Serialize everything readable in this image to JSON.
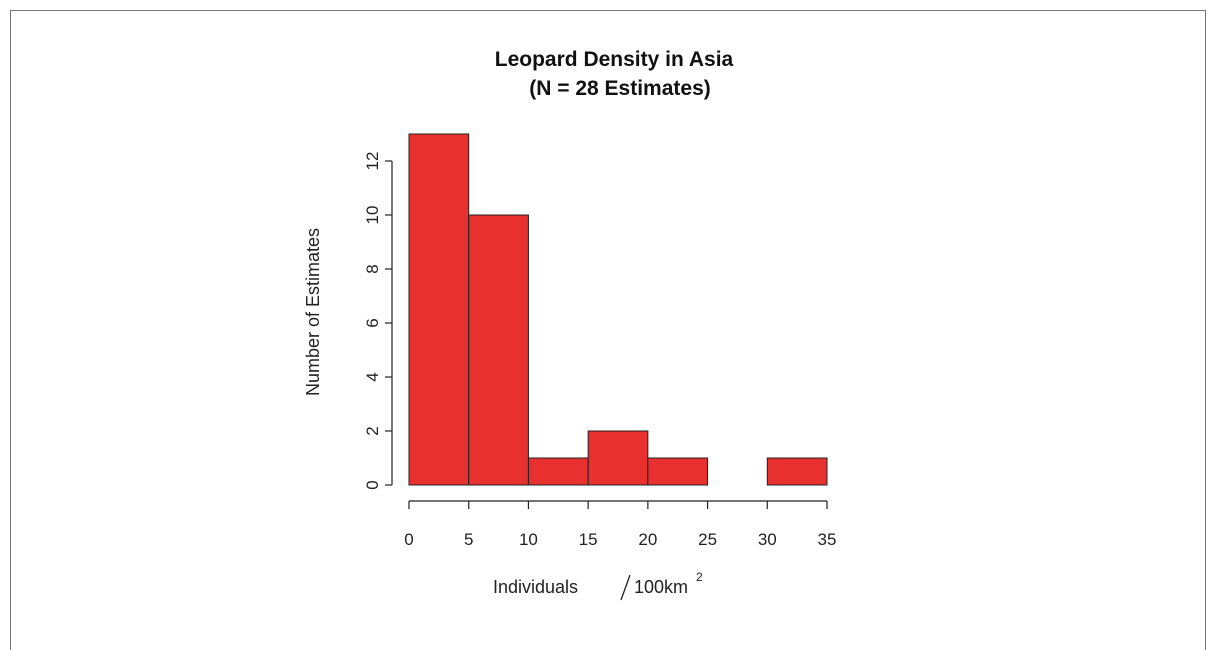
{
  "chart_data": {
    "type": "bar",
    "title_line1": "Leopard Density in Asia",
    "title_line2": "(N = 28 Estimates)",
    "xlabel_main": "Individuals",
    "xlabel_unit": "100km",
    "xlabel_unit_sup": "2",
    "ylabel": "Number of Estimates",
    "bins": [
      {
        "from": 0,
        "to": 5,
        "count": 13
      },
      {
        "from": 5,
        "to": 10,
        "count": 10
      },
      {
        "from": 10,
        "to": 15,
        "count": 1
      },
      {
        "from": 15,
        "to": 20,
        "count": 2
      },
      {
        "from": 20,
        "to": 25,
        "count": 1
      },
      {
        "from": 25,
        "to": 30,
        "count": 0
      },
      {
        "from": 30,
        "to": 35,
        "count": 1
      }
    ],
    "xlim": [
      0,
      35
    ],
    "ylim": [
      0,
      13
    ],
    "x_ticks": [
      "0",
      "5",
      "10",
      "15",
      "20",
      "25",
      "30",
      "35"
    ],
    "y_ticks": [
      "0",
      "2",
      "4",
      "6",
      "8",
      "10",
      "12"
    ],
    "bar_color": "#e8302e",
    "grid": false
  }
}
